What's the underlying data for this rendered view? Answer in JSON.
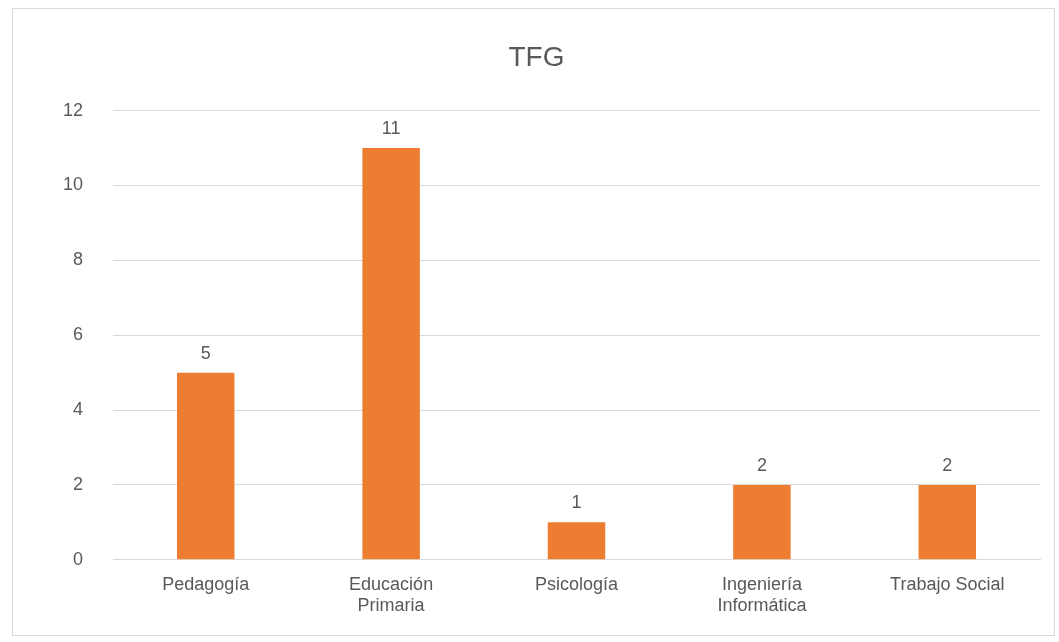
{
  "chart_data": {
    "type": "bar",
    "title": "TFG",
    "categories": [
      "Pedagogía",
      "Educación Primaria",
      "Psicología",
      "Ingeniería Informática",
      "Trabajo Social"
    ],
    "values": [
      5,
      11,
      1,
      2,
      2
    ],
    "color": "#ed7d31",
    "ylim": [
      0,
      12
    ],
    "yticks": [
      0,
      2,
      4,
      6,
      8,
      10,
      12
    ],
    "grid": "y",
    "data_labels": true
  }
}
